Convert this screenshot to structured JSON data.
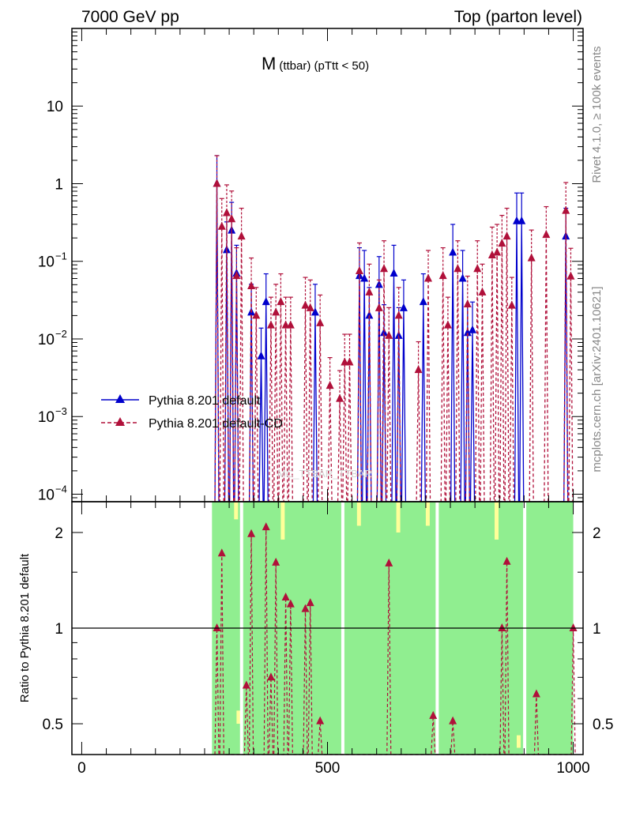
{
  "header": {
    "left": "7000 GeV pp",
    "right": "Top (parton level)"
  },
  "side": {
    "rivet": "Rivet 4.1.0, ≥ 100k events",
    "mcplots": "mcplots.cern.ch [arXiv:2401.10621]"
  },
  "colors": {
    "default": "#0000cc",
    "cd": "#b0103a",
    "band_green": "#90ee90",
    "band_yellow": "#ffff99"
  },
  "chart_data": [
    {
      "type": "line",
      "title": "M (ttbar) (pTtt < 50)",
      "title_main": "M",
      "title_sub": "(ttbar) (pTtt < 50)",
      "yscale": "log",
      "xlim": [
        -20,
        1020
      ],
      "ylim": [
        8e-05,
        100
      ],
      "y_ticks": [
        {
          "v": 10,
          "label": "10"
        },
        {
          "v": 1,
          "label": "1"
        },
        {
          "v": 0.1,
          "label": "10",
          "exp": "−1"
        },
        {
          "v": 0.01,
          "label": "10",
          "exp": "−2"
        },
        {
          "v": 0.001,
          "label": "10",
          "exp": "−3"
        },
        {
          "v": 0.0001,
          "label": "10",
          "exp": "−4"
        }
      ],
      "watermark": "MC_TTBAR_TTBAR",
      "legend": [
        "Pythia 8.201 default",
        "Pythia 8.201 default-CD"
      ],
      "series": [
        {
          "name": "Pythia 8.201 default",
          "x": [
            275,
            295,
            305,
            315,
            345,
            365,
            375,
            475,
            565,
            575,
            585,
            605,
            615,
            635,
            645,
            655,
            695,
            755,
            775,
            785,
            795,
            885,
            895,
            985
          ],
          "y": [
            1.0,
            0.14,
            0.25,
            0.07,
            0.022,
            0.006,
            0.03,
            0.022,
            0.065,
            0.06,
            0.02,
            0.05,
            0.012,
            0.07,
            0.011,
            0.025,
            0.03,
            0.13,
            0.06,
            0.012,
            0.013,
            0.33,
            0.33,
            0.21
          ]
        },
        {
          "name": "Pythia 8.201 default-CD",
          "x": [
            275,
            285,
            295,
            305,
            315,
            325,
            345,
            355,
            385,
            395,
            405,
            415,
            425,
            455,
            465,
            485,
            505,
            525,
            535,
            545,
            565,
            585,
            605,
            615,
            625,
            645,
            685,
            705,
            735,
            745,
            765,
            785,
            805,
            815,
            835,
            845,
            855,
            865,
            875,
            915,
            945,
            985,
            995
          ],
          "y": [
            1.0,
            0.28,
            0.42,
            0.35,
            0.065,
            0.21,
            0.048,
            0.02,
            0.015,
            0.022,
            0.03,
            0.015,
            0.015,
            0.027,
            0.025,
            0.016,
            0.0025,
            0.0017,
            0.005,
            0.005,
            0.075,
            0.04,
            0.025,
            0.08,
            0.011,
            0.02,
            0.004,
            0.06,
            0.065,
            0.015,
            0.08,
            0.028,
            0.08,
            0.04,
            0.12,
            0.13,
            0.17,
            0.21,
            0.027,
            0.11,
            0.22,
            0.45,
            0.064
          ]
        }
      ]
    },
    {
      "type": "line",
      "ylabel": "Ratio to Pythia 8.201 default",
      "yscale": "log",
      "xlim": [
        -20,
        1020
      ],
      "ylim": [
        0.4,
        2.5
      ],
      "y_ticks": [
        {
          "v": 0.5,
          "label": "0.5"
        },
        {
          "v": 1,
          "label": "1"
        },
        {
          "v": 2,
          "label": "2"
        }
      ],
      "x_ticks": [
        {
          "v": 0,
          "label": "0"
        },
        {
          "v": 500,
          "label": "500"
        },
        {
          "v": 1000,
          "label": "1000"
        }
      ],
      "reference": 1,
      "series": [
        {
          "name": "Pythia 8.201 default-CD / Pythia 8.201 default",
          "x": [
            275,
            285,
            335,
            345,
            375,
            385,
            395,
            415,
            425,
            455,
            465,
            485,
            625,
            715,
            755,
            855,
            865,
            925,
            1000
          ],
          "y": [
            1.0,
            1.72,
            0.66,
            1.98,
            2.08,
            0.7,
            1.61,
            1.25,
            1.19,
            1.15,
            1.2,
            0.51,
            1.6,
            0.53,
            0.51,
            1.0,
            1.62,
            0.62,
            1.0
          ]
        }
      ]
    }
  ]
}
